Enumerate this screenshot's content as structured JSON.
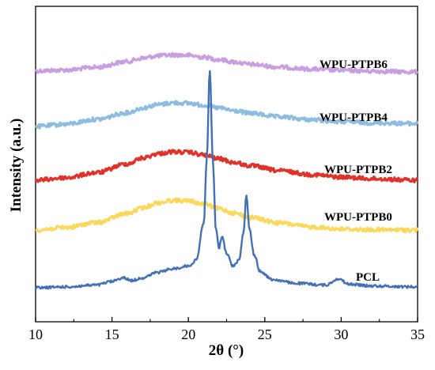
{
  "chart_data": {
    "type": "line",
    "xlabel": "2θ (°)",
    "ylabel": "Intensity (a.u.)",
    "xlim": [
      10,
      35
    ],
    "x_ticks": [
      10,
      15,
      20,
      25,
      30,
      35
    ],
    "x_tick_labels": [
      "10",
      "15",
      "20",
      "25",
      "30",
      "35"
    ],
    "y_ticks_labeled": false,
    "grid": false,
    "legend": "none (series labelled inline at right)",
    "series": [
      {
        "name": "WPU-PTPB6",
        "color": "#c89ee0",
        "x": [
          10,
          12,
          14,
          16,
          17,
          18,
          19,
          20,
          21,
          22,
          23,
          24,
          26,
          28,
          30,
          32,
          35
        ],
        "y": [
          0.36,
          0.45,
          0.75,
          1.35,
          1.7,
          1.95,
          2.05,
          2.0,
          1.8,
          1.55,
          1.3,
          1.05,
          0.75,
          0.55,
          0.42,
          0.33,
          0.25
        ]
      },
      {
        "name": "WPU-PTPB4",
        "color": "#8cbcdf",
        "x": [
          10,
          12,
          14,
          16,
          17,
          18,
          19,
          20,
          21,
          22,
          23,
          24,
          26,
          28,
          30,
          32,
          35
        ],
        "y": [
          0.0,
          0.25,
          0.75,
          1.45,
          1.95,
          2.3,
          2.5,
          2.45,
          2.25,
          1.95,
          1.65,
          1.4,
          1.0,
          0.72,
          0.5,
          0.38,
          0.3
        ]
      },
      {
        "name": "WPU-PTPB2",
        "color": "#e03228",
        "x": [
          10,
          12,
          14,
          16,
          17,
          18,
          19,
          20,
          21,
          22,
          23,
          24,
          26,
          28,
          30,
          32,
          35
        ],
        "y": [
          0.0,
          0.2,
          0.6,
          1.3,
          1.75,
          2.1,
          2.25,
          2.2,
          2.0,
          1.7,
          1.4,
          1.15,
          0.75,
          0.45,
          0.25,
          0.12,
          0.0
        ]
      },
      {
        "name": "WPU-PTPB0",
        "color": "#fbd75b",
        "x": [
          10,
          12,
          14,
          16,
          17,
          18,
          19,
          20,
          21,
          22,
          23,
          24,
          26,
          28,
          30,
          32,
          35
        ],
        "y": [
          0.0,
          0.2,
          0.6,
          1.3,
          1.75,
          2.15,
          2.35,
          2.3,
          2.05,
          1.7,
          1.35,
          1.0,
          0.55,
          0.25,
          0.08,
          0.02,
          0.0
        ]
      },
      {
        "name": "PCL",
        "color": "#4470b5",
        "x": [
          10,
          12,
          14,
          15,
          15.7,
          16.3,
          17,
          18,
          19,
          20,
          20.5,
          21.0,
          21.2,
          21.4,
          21.6,
          21.8,
          22.0,
          22.2,
          22.5,
          22.9,
          23.3,
          23.6,
          23.8,
          24.0,
          24.3,
          24.7,
          25.5,
          27,
          29,
          29.8,
          30.5,
          32,
          35
        ],
        "y": [
          0.0,
          0.05,
          0.15,
          0.35,
          0.55,
          0.4,
          0.55,
          0.85,
          1.05,
          1.2,
          1.5,
          3.5,
          7.0,
          12.0,
          7.0,
          3.2,
          2.2,
          2.8,
          1.9,
          1.2,
          1.5,
          3.0,
          5.1,
          3.2,
          1.8,
          0.9,
          0.45,
          0.25,
          0.15,
          0.5,
          0.2,
          0.1,
          0.05
        ]
      }
    ]
  }
}
